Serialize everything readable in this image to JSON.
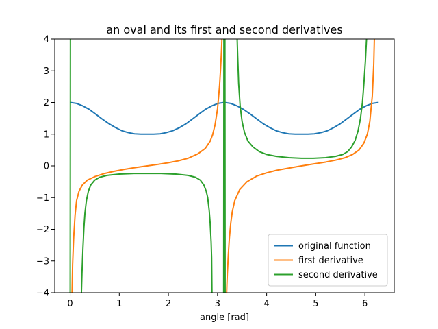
{
  "chart_data": {
    "type": "line",
    "title": "an oval and its first and second derivatives",
    "xlabel": "angle [rad]",
    "ylabel": "",
    "xlim": [
      -0.314,
      6.597
    ],
    "ylim": [
      -4,
      4
    ],
    "grid": false,
    "legend_position": "lower-right",
    "x_ticks": [
      0,
      1,
      2,
      3,
      4,
      5,
      6
    ],
    "x_tick_labels": [
      "0",
      "1",
      "2",
      "3",
      "4",
      "5",
      "6"
    ],
    "y_ticks": [
      -4,
      -3,
      -2,
      -1,
      0,
      1,
      2,
      3,
      4
    ],
    "y_tick_labels": [
      "−4",
      "−3",
      "−2",
      "−1",
      "0",
      "1",
      "2",
      "3",
      "4"
    ],
    "series": [
      {
        "name": "original function",
        "color": "#1f77b4",
        "x": [
          0.0,
          0.13,
          0.26,
          0.39,
          0.52,
          0.65,
          0.79,
          0.92,
          1.05,
          1.18,
          1.31,
          1.44,
          1.57,
          1.7,
          1.83,
          1.96,
          2.09,
          2.23,
          2.36,
          2.49,
          2.62,
          2.75,
          2.88,
          3.01,
          3.14,
          3.27,
          3.4,
          3.53,
          3.67,
          3.8,
          3.93,
          4.06,
          4.19,
          4.32,
          4.45,
          4.58,
          4.71,
          4.84,
          4.97,
          5.11,
          5.24,
          5.37,
          5.5,
          5.63,
          5.76,
          5.89,
          6.02,
          6.15,
          6.28
        ],
        "y": [
          2.0,
          1.97,
          1.89,
          1.78,
          1.63,
          1.48,
          1.33,
          1.21,
          1.11,
          1.05,
          1.01,
          1.0,
          1.0,
          1.0,
          1.01,
          1.05,
          1.11,
          1.21,
          1.33,
          1.48,
          1.63,
          1.78,
          1.89,
          1.97,
          2.0,
          1.97,
          1.89,
          1.78,
          1.63,
          1.48,
          1.33,
          1.21,
          1.11,
          1.05,
          1.01,
          1.0,
          1.0,
          1.0,
          1.01,
          1.05,
          1.11,
          1.21,
          1.33,
          1.48,
          1.63,
          1.78,
          1.89,
          1.97,
          2.0
        ]
      },
      {
        "name": "first derivative",
        "color": "#ff7f0e",
        "x": [
          0.0,
          0.03,
          0.04,
          0.05,
          0.07,
          0.1,
          0.13,
          0.18,
          0.25,
          0.35,
          0.5,
          0.7,
          0.9,
          1.1,
          1.3,
          1.57,
          1.8,
          2.0,
          2.2,
          2.4,
          2.6,
          2.75,
          2.85,
          2.9,
          2.95,
          3.0,
          3.04,
          3.06,
          3.08,
          3.09,
          3.1,
          3.105,
          null,
          3.177,
          3.18,
          3.19,
          3.2,
          3.22,
          3.24,
          3.27,
          3.3,
          3.35,
          3.45,
          3.6,
          3.8,
          4.0,
          4.2,
          4.45,
          4.71,
          4.95,
          5.2,
          5.4,
          5.6,
          5.75,
          5.88,
          5.98,
          6.05,
          6.1,
          6.15,
          6.18,
          6.2
        ],
        "y": [
          null,
          -4.5,
          -3.9,
          -3.1,
          -2.3,
          -1.55,
          -1.1,
          -0.8,
          -0.6,
          -0.45,
          -0.34,
          -0.24,
          -0.17,
          -0.11,
          -0.06,
          0.0,
          0.05,
          0.1,
          0.16,
          0.24,
          0.38,
          0.55,
          0.78,
          0.98,
          1.3,
          1.8,
          2.5,
          3.0,
          3.6,
          4.0,
          4.3,
          4.6,
          null,
          -4.6,
          -4.3,
          -3.8,
          -3.4,
          -2.8,
          -2.3,
          -1.8,
          -1.45,
          -1.1,
          -0.75,
          -0.5,
          -0.32,
          -0.22,
          -0.14,
          -0.07,
          0.0,
          0.06,
          0.12,
          0.18,
          0.26,
          0.36,
          0.5,
          0.72,
          1.0,
          1.4,
          2.2,
          3.2,
          4.5
        ]
      },
      {
        "name": "second derivative",
        "color": "#2ca02c",
        "x": [
          0.0,
          0.005,
          0.01,
          null,
          0.22,
          0.24,
          0.26,
          0.28,
          0.3,
          0.33,
          0.37,
          0.42,
          0.5,
          0.6,
          0.75,
          1.0,
          1.3,
          1.57,
          1.85,
          2.15,
          2.4,
          2.55,
          2.65,
          2.72,
          2.77,
          2.8,
          2.83,
          2.85,
          2.87,
          2.88,
          2.89,
          null,
          3.125,
          3.13,
          3.135,
          3.14,
          3.145,
          3.15,
          3.155,
          null,
          3.39,
          3.41,
          3.43,
          3.46,
          3.5,
          3.55,
          3.62,
          3.72,
          3.85,
          4.0,
          4.2,
          4.45,
          4.71,
          4.95,
          5.2,
          5.4,
          5.55,
          5.65,
          5.73,
          5.8,
          5.86,
          5.91,
          5.95,
          5.98,
          6.01,
          6.03,
          6.045,
          6.055
        ],
        "y": [
          -4.5,
          4.5,
          4.5,
          null,
          -4.5,
          -3.4,
          -2.6,
          -1.95,
          -1.5,
          -1.1,
          -0.8,
          -0.6,
          -0.45,
          -0.36,
          -0.3,
          -0.26,
          -0.24,
          -0.24,
          -0.24,
          -0.26,
          -0.3,
          -0.36,
          -0.45,
          -0.6,
          -0.8,
          -1.0,
          -1.4,
          -1.8,
          -2.4,
          -2.9,
          -4.5,
          null,
          -4.5,
          4.5,
          -4.5,
          4.5,
          -4.5,
          4.5,
          -4.5,
          null,
          4.5,
          3.5,
          2.6,
          1.9,
          1.4,
          1.05,
          0.78,
          0.6,
          0.45,
          0.36,
          0.3,
          0.26,
          0.24,
          0.24,
          0.26,
          0.3,
          0.36,
          0.45,
          0.6,
          0.8,
          1.1,
          1.5,
          2.0,
          2.6,
          3.3,
          3.9,
          4.3,
          4.6
        ]
      }
    ]
  }
}
